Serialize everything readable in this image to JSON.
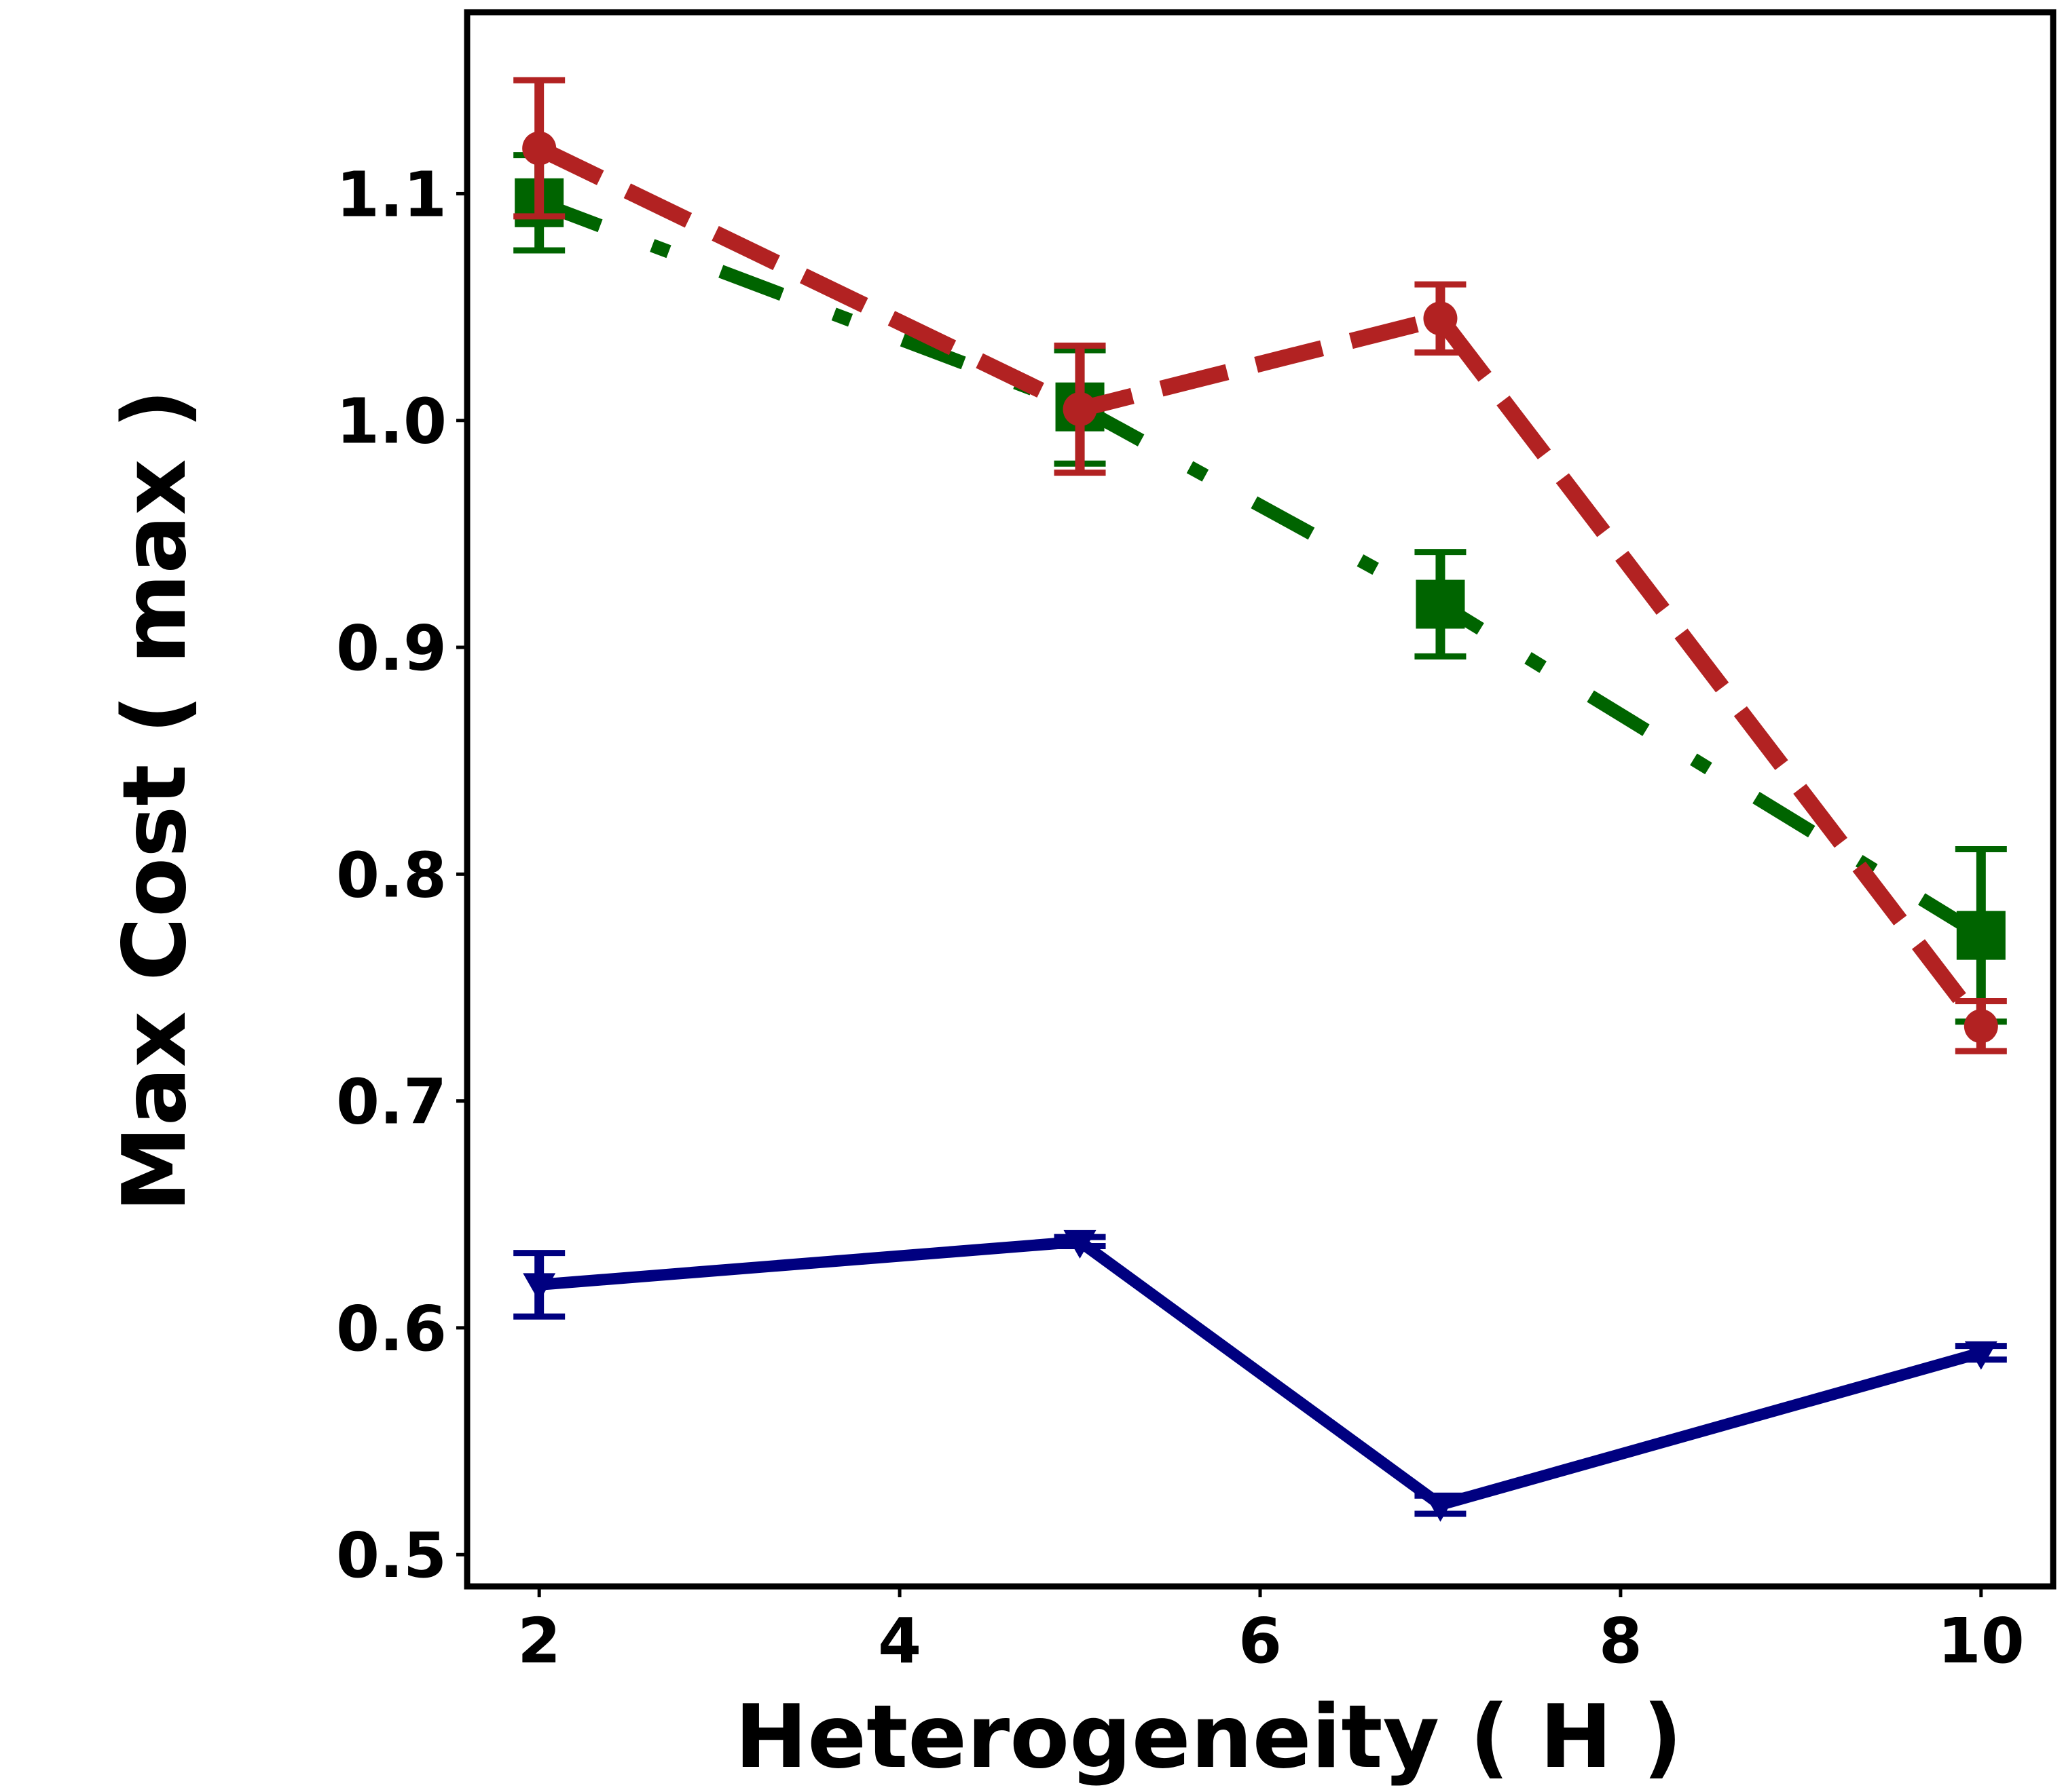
{
  "chart_data": {
    "type": "line",
    "title": "",
    "xlabel": "Heterogeneity ( H )",
    "ylabel": "Max Cost ( max  )",
    "xlim": [
      1.6,
      10.4
    ],
    "ylim": [
      0.486,
      1.18
    ],
    "xticks": [
      2,
      4,
      6,
      8,
      10
    ],
    "xtick_labels": [
      "2",
      "4",
      "6",
      "8",
      "10"
    ],
    "yticks": [
      0.5,
      0.6,
      0.7,
      0.8,
      0.9,
      1.0,
      1.1
    ],
    "ytick_labels": [
      "0.5",
      "0.6",
      "0.7",
      "0.8",
      "0.9",
      "1.0",
      "1.1"
    ],
    "grid": false,
    "legend": false,
    "x": [
      2,
      5,
      7,
      10
    ],
    "series": [
      {
        "name": "red-dashed-circle",
        "color": "#b22222",
        "style": "dashed",
        "marker": "circle",
        "values": [
          1.12,
          1.005,
          1.045,
          0.733
        ],
        "errors": [
          0.03,
          0.028,
          0.015,
          0.011
        ]
      },
      {
        "name": "green-dashdot-square",
        "color": "#006400",
        "style": "dashdot",
        "marker": "square",
        "values": [
          1.096,
          1.006,
          0.919,
          0.773
        ],
        "errors": [
          0.021,
          0.025,
          0.023,
          0.038
        ]
      },
      {
        "name": "navy-solid-triangle",
        "color": "#000080",
        "style": "solid",
        "marker": "triangle-down",
        "values": [
          0.619,
          0.638,
          0.522,
          0.589
        ],
        "errors": [
          0.014,
          0.002,
          0.004,
          0.003
        ]
      }
    ]
  }
}
